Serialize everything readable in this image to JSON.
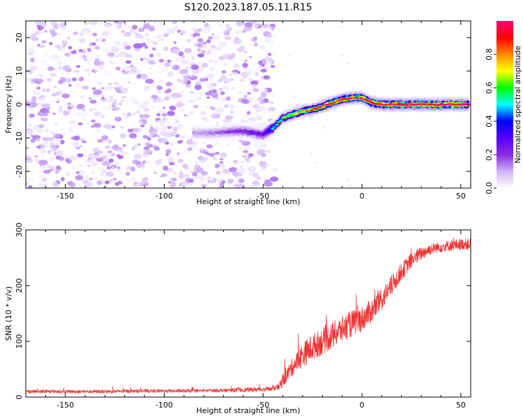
{
  "title": "S120.2023.187.05.11.R15",
  "chart_data": [
    {
      "type": "heatmap",
      "description_of_content": "spectrogram",
      "xlabel": "Height of straight line (km)",
      "ylabel": "Frequency (Hz)",
      "xlim": [
        -170,
        55
      ],
      "ylim": [
        -25,
        25
      ],
      "xticks": [
        -150,
        -100,
        -50,
        0,
        50
      ],
      "xtick_labels": [
        "-150",
        "-100",
        "-50",
        "0",
        "50"
      ],
      "yticks": [
        -20,
        -10,
        0,
        10,
        20
      ],
      "ytick_labels": [
        "-20",
        "-10",
        "0",
        "10",
        "20"
      ],
      "colorbar": {
        "label": "Normalized spectral amplitude",
        "range": [
          0,
          1
        ],
        "ticks": [
          0.0,
          0.2,
          0.4,
          0.6,
          0.8
        ],
        "tick_labels": [
          "0.0",
          "0.2",
          "0.4",
          "0.6",
          "0.8"
        ],
        "colors": [
          "#ffffff",
          "#cfb3f5",
          "#8a2be2",
          "#5500ff",
          "#0000ff",
          "#00ffff",
          "#00ff00",
          "#ffff00",
          "#ff8800",
          "#ff0000",
          "#ff0080"
        ]
      },
      "noise_region_x": [
        -170,
        -45
      ],
      "noise_amplitude_range": [
        0.0,
        0.15
      ],
      "signal_track": {
        "x": [
          -85,
          -75,
          -65,
          -60,
          -55,
          -50,
          -45,
          -40,
          -35,
          -30,
          -25,
          -20,
          -15,
          -10,
          -5,
          0,
          5,
          10,
          20,
          30,
          40,
          50,
          54
        ],
        "frequency": [
          -8.5,
          -8.5,
          -8,
          -8,
          -8.5,
          -9,
          -7,
          -4,
          -3,
          -2,
          -1.5,
          -0.5,
          0.5,
          1.5,
          2,
          2,
          0.5,
          0,
          0,
          0,
          0,
          0,
          0
        ],
        "amplitude": [
          0.12,
          0.14,
          0.2,
          0.22,
          0.24,
          0.26,
          0.45,
          0.6,
          0.7,
          0.75,
          0.8,
          0.85,
          0.88,
          0.9,
          0.9,
          0.9,
          0.92,
          0.95,
          0.97,
          0.97,
          0.97,
          0.97,
          0.96
        ]
      }
    },
    {
      "type": "line",
      "xlabel": "Height of straight line (km)",
      "ylabel": "SNR (10 * v/v)",
      "xlim": [
        -170,
        55
      ],
      "ylim": [
        0,
        300
      ],
      "xticks": [
        -150,
        -100,
        -50,
        0,
        50
      ],
      "xtick_labels": [
        "-150",
        "-100",
        "-50",
        "0",
        "50"
      ],
      "yticks": [
        0,
        100,
        200,
        300
      ],
      "ytick_labels": [
        "0",
        "100",
        "200",
        "300"
      ],
      "series": [
        {
          "color": "#ee3333",
          "x": [
            -170,
            -150,
            -130,
            -110,
            -90,
            -70,
            -60,
            -50,
            -45,
            -42,
            -40,
            -35,
            -30,
            -25,
            -20,
            -15,
            -10,
            -5,
            0,
            5,
            10,
            15,
            20,
            25,
            30,
            35,
            40,
            45,
            50,
            55
          ],
          "y": [
            10,
            10,
            10,
            11,
            11,
            12,
            13,
            14,
            15,
            18,
            30,
            55,
            75,
            90,
            100,
            110,
            122,
            132,
            140,
            155,
            175,
            200,
            225,
            245,
            258,
            266,
            270,
            272,
            274,
            275
          ],
          "noise": [
            3,
            3,
            3,
            3,
            3,
            3,
            4,
            4,
            4,
            6,
            12,
            16,
            22,
            24,
            24,
            24,
            24,
            24,
            22,
            22,
            20,
            18,
            16,
            14,
            12,
            10,
            10,
            10,
            10,
            10
          ]
        }
      ]
    }
  ]
}
